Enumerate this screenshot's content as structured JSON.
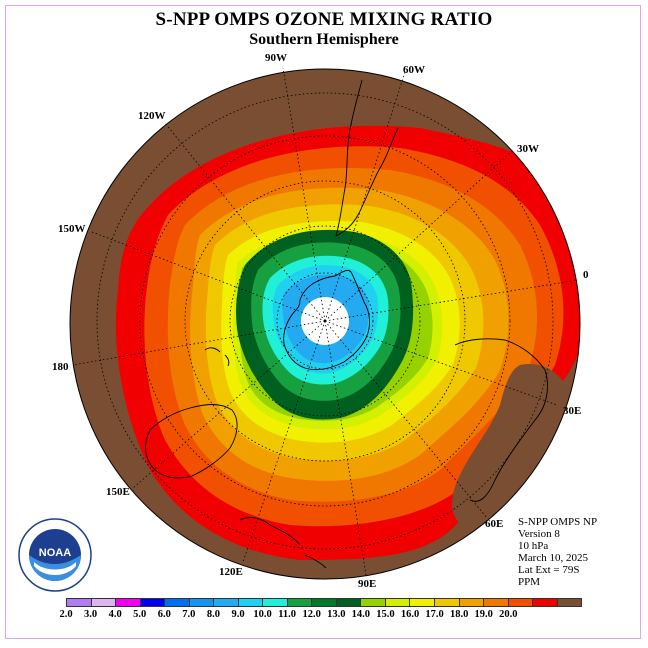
{
  "title": "S-NPP OMPS OZONE MIXING RATIO",
  "subtitle": "Southern Hemisphere",
  "longitude_labels": [
    "90W",
    "60W",
    "30W",
    "0",
    "30E",
    "60E",
    "90E",
    "120E",
    "150E",
    "180",
    "150W",
    "120W"
  ],
  "info": {
    "instrument": "S-NPP OMPS NP",
    "version": "Version 8",
    "level": "10 hPa",
    "date": "March 10, 2025",
    "lat_ext": "Lat Ext = 79S",
    "units": "PPM"
  },
  "logo_text": "NOAA",
  "colorbar": {
    "colors": [
      "#b07cf0",
      "#dcb4f0",
      "#f000f0",
      "#0000f0",
      "#0070f0",
      "#1496f0",
      "#24aaf0",
      "#20d0f0",
      "#20f0d8",
      "#16a040",
      "#00782a",
      "#006020",
      "#96d200",
      "#d2f000",
      "#f0f000",
      "#f0c800",
      "#f0a000",
      "#f07800",
      "#f05000",
      "#f00000",
      "#7a4e32"
    ],
    "ticks": [
      "2.0",
      "3.0",
      "4.0",
      "5.0",
      "6.0",
      "7.0",
      "8.0",
      "9.0",
      "10.0",
      "11.0",
      "12.0",
      "13.0",
      "14.0",
      "15.0",
      "16.0",
      "17.0",
      "18.0",
      "19.0",
      "20.0"
    ]
  },
  "map_colors": {
    "brown": "#7a4e32",
    "red": "#f00000",
    "orange_red": "#f05000",
    "orange": "#f07800",
    "light_orange": "#f0a000",
    "gold": "#f0c800",
    "yellow": "#f0f000",
    "yellow_green": "#d2f000",
    "green_yellow": "#96d200",
    "dark_green": "#00782a",
    "darkest_green": "#006020",
    "green": "#16a040",
    "cyan_green": "#20f0d8",
    "cyan": "#20d0f0",
    "sky": "#24aaf0",
    "blue": "#1496f0"
  }
}
